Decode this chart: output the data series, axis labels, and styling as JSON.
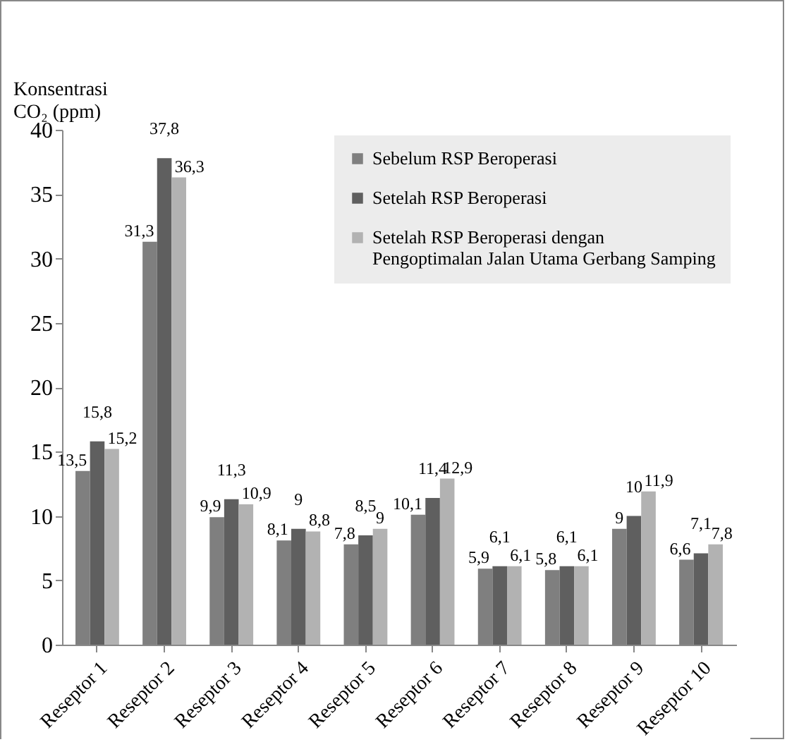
{
  "chart_data": {
    "type": "bar",
    "ylabel": "Konsentrasi CO₂ (ppm)",
    "categories": [
      "Reseptor 1",
      "Reseptor 2",
      "Reseptor 3",
      "Reseptor 4",
      "Reseptor 5",
      "Reseptor 6",
      "Reseptor 7",
      "Reseptor 8",
      "Reseptor 9",
      "Reseptor 10"
    ],
    "series": [
      {
        "name": "Sebelum RSP Beroperasi",
        "color": "#7f7f7f",
        "values": [
          13.5,
          31.3,
          9.9,
          8.1,
          7.8,
          10.1,
          5.9,
          5.8,
          9,
          6.6
        ],
        "value_labels": [
          "13,5",
          "31,3",
          "9,9",
          "8,1",
          "7,8",
          "10,1",
          "5,9",
          "5,8",
          "9",
          "6,6"
        ]
      },
      {
        "name": "Setelah RSP Beroperasi",
        "color": "#5f5f5f",
        "values": [
          15.8,
          37.8,
          11.3,
          9,
          8.5,
          11.4,
          6.1,
          6.1,
          10,
          7.1
        ],
        "value_labels": [
          "15,8",
          "37,8",
          "11,3",
          "9",
          "8,5",
          "11,4",
          "6,1",
          "6,1",
          "10",
          "7,1"
        ]
      },
      {
        "name": "Setelah RSP Beroperasi dengan Pengoptimalan Jalan Utama Gerbang Samping",
        "color": "#b2b2b2",
        "values": [
          15.2,
          36.3,
          10.9,
          8.8,
          9,
          12.9,
          6.1,
          6.1,
          11.9,
          7.8
        ],
        "value_labels": [
          "15,2",
          "36,3",
          "10,9",
          "8,8",
          "9",
          "12,9",
          "6,1",
          "6,1",
          "11,9",
          "7,8"
        ]
      }
    ],
    "ylim": [
      0,
      40
    ],
    "yticks": [
      0,
      5,
      10,
      15,
      20,
      25,
      30,
      35,
      40
    ],
    "grid": false,
    "legend": "top right"
  }
}
